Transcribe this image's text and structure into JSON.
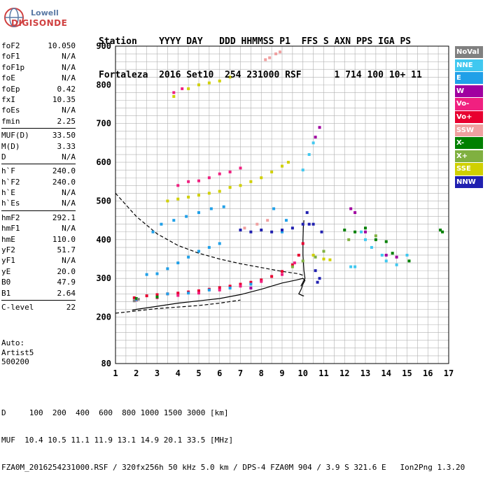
{
  "logo": {
    "top": "Lowell",
    "bottom": "DIGISONDE"
  },
  "header": {
    "line1": "Station    YYYY DAY   DDD HHMMSS P1  FFS S AXN PPS IGA PS",
    "line2": "Fortaleza  2016 Set10  254 231000 RSF      1 714 100 10+ 11"
  },
  "params": [
    [
      {
        "label": "foF2",
        "value": "10.050"
      },
      {
        "label": "foF1",
        "value": "N/A"
      },
      {
        "label": "foF1p",
        "value": "N/A"
      },
      {
        "label": "foE",
        "value": "N/A"
      },
      {
        "label": "foEp",
        "value": "0.42"
      },
      {
        "label": "fxI",
        "value": "10.35"
      },
      {
        "label": "foEs",
        "value": "N/A"
      },
      {
        "label": "fmin",
        "value": "2.25"
      }
    ],
    [
      {
        "label": "MUF(D)",
        "value": "33.50"
      },
      {
        "label": "M(D)",
        "value": "3.33"
      },
      {
        "label": "D",
        "value": "N/A"
      }
    ],
    [
      {
        "label": "h`F",
        "value": "240.0"
      },
      {
        "label": "h`F2",
        "value": "240.0"
      },
      {
        "label": "h`E",
        "value": "N/A"
      },
      {
        "label": "h`Es",
        "value": "N/A"
      }
    ],
    [
      {
        "label": "hmF2",
        "value": "292.1"
      },
      {
        "label": "hmF1",
        "value": "N/A"
      },
      {
        "label": "hmE",
        "value": "110.0"
      },
      {
        "label": "yF2",
        "value": "51.7"
      },
      {
        "label": "yF1",
        "value": "N/A"
      },
      {
        "label": "yE",
        "value": "20.0"
      },
      {
        "label": "B0",
        "value": "47.9"
      },
      {
        "label": "B1",
        "value": "2.64"
      }
    ],
    [
      {
        "label": "C-level",
        "value": "22"
      }
    ]
  ],
  "auto": {
    "line1": "Auto:",
    "line2": "Artist5",
    "line3": "500200"
  },
  "footer": {
    "line1": "D     100  200  400  600  800 1000 1500 3000 [km]",
    "line2": "MUF  10.4 10.5 11.1 11.9 13.1 14.9 20.1 33.5 [MHz]",
    "line3": "FZA0M_2016254231000.RSF / 320fx256h 50 kHz 5.0 km / DPS-4 FZA0M 904 / 3.9 S 321.6 E   Ion2Png 1.3.20"
  },
  "legend": [
    {
      "name": "NoVal",
      "color": "#808080"
    },
    {
      "name": "NNE",
      "color": "#40c8f0"
    },
    {
      "name": "E",
      "color": "#20a0e8"
    },
    {
      "name": "W",
      "color": "#a000a0"
    },
    {
      "name": "Vo-",
      "color": "#f02080"
    },
    {
      "name": "Vo+",
      "color": "#e80030"
    },
    {
      "name": "SSW",
      "color": "#f0a0a0"
    },
    {
      "name": "X-",
      "color": "#008000"
    },
    {
      "name": "X+",
      "color": "#80b040"
    },
    {
      "name": "SSE",
      "color": "#d0d000"
    },
    {
      "name": "NNW",
      "color": "#2020b0"
    }
  ],
  "chart_data": {
    "type": "scatter",
    "title": "",
    "xlabel": "",
    "ylabel": "",
    "xlim": [
      1,
      17
    ],
    "ylim": [
      80,
      900
    ],
    "xticks": [
      "1",
      "2",
      "3",
      "4",
      "5",
      "6",
      "7",
      "8",
      "9",
      "10",
      "11",
      "12",
      "13",
      "14",
      "15",
      "16",
      "17"
    ],
    "yticks": [
      "200",
      "300",
      "400",
      "500",
      "600",
      "700",
      "800",
      "900"
    ],
    "ytick_values": [
      200,
      300,
      400,
      500,
      600,
      700,
      800,
      900
    ],
    "grid": true,
    "legend_position": "right",
    "series": [
      {
        "name": "Vo+",
        "color": "#e80030",
        "points": [
          [
            1.9,
            250
          ],
          [
            2.5,
            255
          ],
          [
            3,
            258
          ],
          [
            3.5,
            260
          ],
          [
            4,
            262
          ],
          [
            4.5,
            265
          ],
          [
            5,
            268
          ],
          [
            5.5,
            272
          ],
          [
            6,
            276
          ],
          [
            6.5,
            280
          ],
          [
            7,
            285
          ],
          [
            7.5,
            290
          ],
          [
            8,
            296
          ],
          [
            8.5,
            305
          ],
          [
            9,
            318
          ],
          [
            9.5,
            335
          ],
          [
            9.8,
            360
          ],
          [
            10,
            390
          ]
        ]
      },
      {
        "name": "Vo-",
        "color": "#f02080",
        "points": [
          [
            2,
            244
          ],
          [
            3,
            250
          ],
          [
            4,
            256
          ],
          [
            5,
            262
          ],
          [
            6,
            270
          ],
          [
            7,
            280
          ],
          [
            8,
            292
          ],
          [
            9,
            310
          ],
          [
            9.6,
            340
          ],
          [
            4,
            540
          ],
          [
            4.5,
            550
          ],
          [
            5,
            552
          ],
          [
            5.5,
            560
          ],
          [
            6,
            570
          ],
          [
            6.5,
            575
          ],
          [
            7,
            585
          ],
          [
            3.8,
            780
          ],
          [
            4.2,
            790
          ]
        ]
      },
      {
        "name": "E",
        "color": "#20a0e8",
        "points": [
          [
            2,
            245
          ],
          [
            2.5,
            310
          ],
          [
            3,
            312
          ],
          [
            3.5,
            325
          ],
          [
            4,
            340
          ],
          [
            4.5,
            355
          ],
          [
            5,
            370
          ],
          [
            5.5,
            380
          ],
          [
            6,
            390
          ],
          [
            2.8,
            420
          ],
          [
            3.2,
            440
          ],
          [
            3.8,
            450
          ],
          [
            4.4,
            460
          ],
          [
            5,
            470
          ],
          [
            5.6,
            480
          ],
          [
            6.2,
            485
          ],
          [
            3.5,
            260
          ],
          [
            4.5,
            262
          ],
          [
            5.5,
            270
          ],
          [
            6.5,
            275
          ],
          [
            7.5,
            285
          ],
          [
            9,
            420
          ],
          [
            9.2,
            450
          ],
          [
            8.6,
            480
          ]
        ]
      },
      {
        "name": "SSE",
        "color": "#d0d000",
        "points": [
          [
            3.5,
            500
          ],
          [
            4,
            505
          ],
          [
            4.5,
            510
          ],
          [
            5,
            515
          ],
          [
            5.5,
            520
          ],
          [
            6,
            525
          ],
          [
            6.5,
            535
          ],
          [
            7,
            540
          ],
          [
            7.5,
            550
          ],
          [
            8,
            560
          ],
          [
            8.5,
            575
          ],
          [
            9,
            590
          ],
          [
            9.3,
            600
          ],
          [
            3.8,
            770
          ],
          [
            4.5,
            790
          ],
          [
            5,
            800
          ],
          [
            5.5,
            805
          ],
          [
            6,
            810
          ],
          [
            6.5,
            820
          ],
          [
            10.5,
            360
          ],
          [
            11,
            350
          ],
          [
            11.3,
            348
          ]
        ]
      },
      {
        "name": "NNW",
        "color": "#2020b0",
        "points": [
          [
            7,
            425
          ],
          [
            7.5,
            420
          ],
          [
            8,
            425
          ],
          [
            8.5,
            420
          ],
          [
            9,
            425
          ],
          [
            9.5,
            430
          ],
          [
            10,
            440
          ],
          [
            10.3,
            440
          ],
          [
            10.5,
            440
          ],
          [
            10.8,
            300
          ],
          [
            10.7,
            290
          ],
          [
            10.9,
            420
          ],
          [
            10.2,
            470
          ],
          [
            10.6,
            320
          ]
        ]
      },
      {
        "name": "W",
        "color": "#a000a0",
        "points": [
          [
            10.6,
            665
          ],
          [
            10.8,
            690
          ],
          [
            12.3,
            480
          ],
          [
            12.5,
            470
          ],
          [
            13,
            420
          ],
          [
            14,
            360
          ],
          [
            14.5,
            355
          ],
          [
            7.5,
            275
          ]
        ]
      },
      {
        "name": "NNE",
        "color": "#40c8f0",
        "points": [
          [
            12.3,
            330
          ],
          [
            12.5,
            330
          ],
          [
            12.8,
            420
          ],
          [
            13,
            400
          ],
          [
            13.3,
            380
          ],
          [
            13.8,
            360
          ],
          [
            14,
            345
          ],
          [
            14.5,
            335
          ],
          [
            15,
            360
          ],
          [
            10,
            580
          ],
          [
            10.3,
            620
          ],
          [
            10.5,
            650
          ]
        ]
      },
      {
        "name": "X-",
        "color": "#008000",
        "points": [
          [
            2,
            248
          ],
          [
            3,
            252
          ],
          [
            12,
            425
          ],
          [
            12.5,
            420
          ],
          [
            13,
            430
          ],
          [
            13.5,
            400
          ],
          [
            14,
            395
          ],
          [
            14.3,
            365
          ],
          [
            15.1,
            345
          ],
          [
            16.6,
            425
          ],
          [
            16.7,
            420
          ]
        ]
      },
      {
        "name": "X+",
        "color": "#80b040",
        "points": [
          [
            9.5,
            330
          ],
          [
            10,
            345
          ],
          [
            10.6,
            355
          ],
          [
            11,
            370
          ],
          [
            12.2,
            400
          ],
          [
            13.5,
            410
          ]
        ]
      },
      {
        "name": "SSW",
        "color": "#f0a0a0",
        "points": [
          [
            8.2,
            865
          ],
          [
            8.4,
            870
          ],
          [
            8.7,
            880
          ],
          [
            8.9,
            885
          ],
          [
            7.2,
            430
          ],
          [
            7.8,
            440
          ],
          [
            8.3,
            450
          ]
        ]
      },
      {
        "name": "NoVal",
        "color": "#808080",
        "points": [
          [
            1.9,
            242
          ],
          [
            2.1,
            246
          ]
        ]
      }
    ],
    "curves": [
      {
        "name": "profile",
        "style": "solid",
        "color": "#000000",
        "points": [
          [
            1.8,
            218
          ],
          [
            2,
            220
          ],
          [
            3,
            228
          ],
          [
            4,
            236
          ],
          [
            5,
            242
          ],
          [
            6,
            248
          ],
          [
            7,
            258
          ],
          [
            8,
            272
          ],
          [
            9,
            288
          ],
          [
            9.7,
            296
          ],
          [
            10,
            300
          ],
          [
            10.1,
            295
          ],
          [
            10,
            285
          ],
          [
            9.9,
            270
          ],
          [
            9.8,
            260
          ],
          [
            10,
            255
          ],
          [
            10.05,
            255
          ]
        ]
      },
      {
        "name": "profile_upper",
        "style": "solid",
        "color": "#000000",
        "points": [
          [
            9.9,
            280
          ],
          [
            10.1,
            300
          ],
          [
            10.05,
            320
          ],
          [
            10,
            360
          ],
          [
            10,
            400
          ],
          [
            10.02,
            430
          ],
          [
            10.05,
            450
          ]
        ]
      },
      {
        "name": "muf_dashed",
        "style": "dashed",
        "color": "#000000",
        "points": [
          [
            1,
            520
          ],
          [
            2,
            460
          ],
          [
            3,
            415
          ],
          [
            4,
            385
          ],
          [
            5,
            365
          ],
          [
            6,
            350
          ],
          [
            7,
            338
          ],
          [
            8,
            328
          ],
          [
            9,
            318
          ],
          [
            9.8,
            312
          ],
          [
            10,
            308
          ]
        ]
      },
      {
        "name": "lower_dashed",
        "style": "dashed",
        "color": "#000000",
        "points": [
          [
            1,
            210
          ],
          [
            2,
            216
          ],
          [
            3,
            222
          ],
          [
            4,
            226
          ],
          [
            5,
            230
          ],
          [
            6,
            236
          ],
          [
            7,
            244
          ]
        ]
      }
    ]
  }
}
